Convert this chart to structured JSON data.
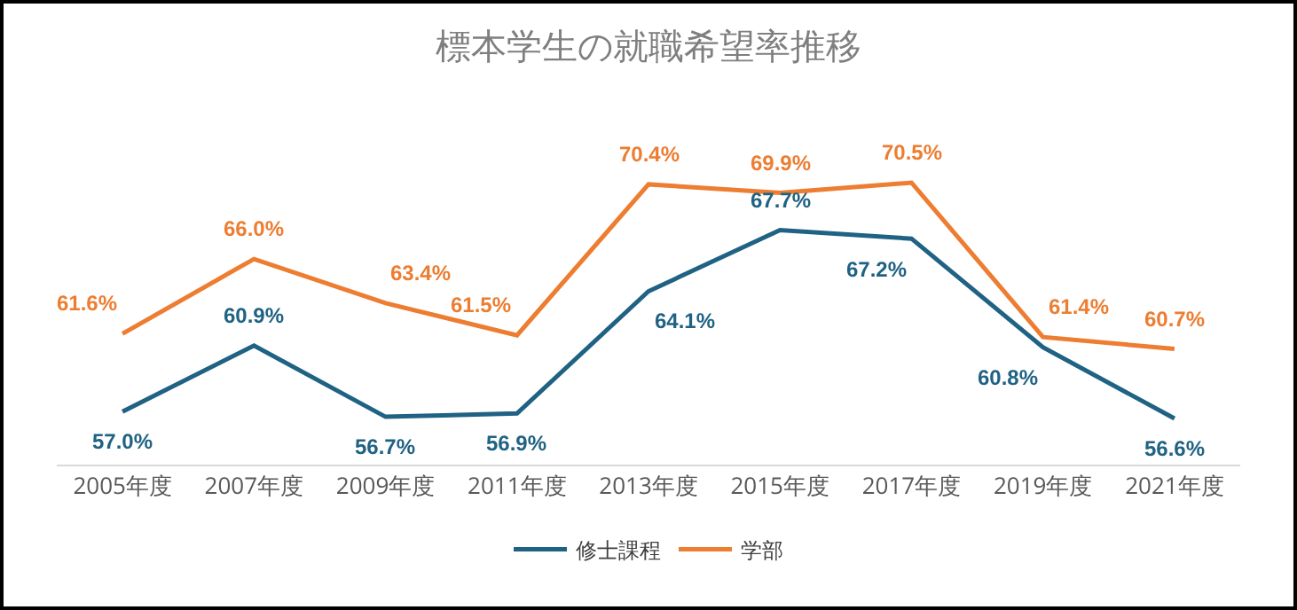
{
  "chart_data": {
    "type": "line",
    "title": "標本学生の就職希望率推移",
    "categories": [
      "2005年度",
      "2007年度",
      "2009年度",
      "2011年度",
      "2013年度",
      "2015年度",
      "2017年度",
      "2019年度",
      "2021年度"
    ],
    "series": [
      {
        "name": "修士課程",
        "color": "#1f6283",
        "values": [
          57.0,
          60.9,
          56.7,
          56.9,
          64.1,
          67.7,
          67.2,
          60.8,
          56.6
        ],
        "value_labels": [
          "57.0%",
          "60.9%",
          "56.7%",
          "56.9%",
          "64.1%",
          "67.7%",
          "67.2%",
          "60.8%",
          "56.6%"
        ]
      },
      {
        "name": "学部",
        "color": "#ed7d31",
        "values": [
          61.6,
          66.0,
          63.4,
          61.5,
          70.4,
          69.9,
          70.5,
          61.4,
          60.7
        ],
        "value_labels": [
          "61.6%",
          "66.0%",
          "63.4%",
          "61.5%",
          "70.4%",
          "69.9%",
          "70.5%",
          "61.4%",
          "60.7%"
        ]
      }
    ],
    "tick_labels": "x",
    "grid": false,
    "legend": "bottom",
    "marker": "none",
    "line_style": "solid"
  }
}
